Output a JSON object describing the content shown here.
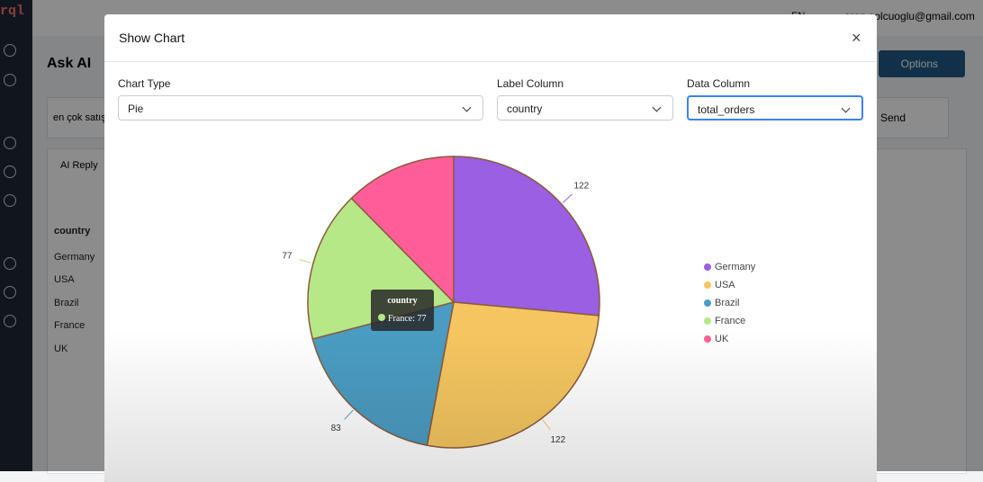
{
  "app": {
    "logo": "rql",
    "lang": "EN",
    "email": "eren.solcuoglu@gmail.com",
    "page_title": "Ask AI",
    "options": "Options",
    "query": "en çok satış",
    "send": "Send",
    "reply_tab": "AI Reply"
  },
  "table": {
    "header": "country",
    "rows": [
      "Germany",
      "USA",
      "Brazil",
      "France",
      "UK"
    ]
  },
  "modal": {
    "title": "Show Chart",
    "chart_type_label": "Chart Type",
    "chart_type": "Pie",
    "label_column_label": "Label Column",
    "label_column": "country",
    "data_column_label": "Data Column",
    "data_column": "total_orders"
  },
  "tooltip": {
    "title": "country",
    "text": "France: 77"
  },
  "chart_data": {
    "type": "pie",
    "categories": [
      "Germany",
      "USA",
      "Brazil",
      "France",
      "UK"
    ],
    "values": [
      122,
      122,
      83,
      77,
      57
    ],
    "value_labels": [
      "122",
      "122",
      "83",
      "77",
      null
    ],
    "colors": [
      "#9b5fe3",
      "#f5c660",
      "#4b9cc2",
      "#b6e888",
      "#ff5e99"
    ],
    "legend": "right"
  }
}
